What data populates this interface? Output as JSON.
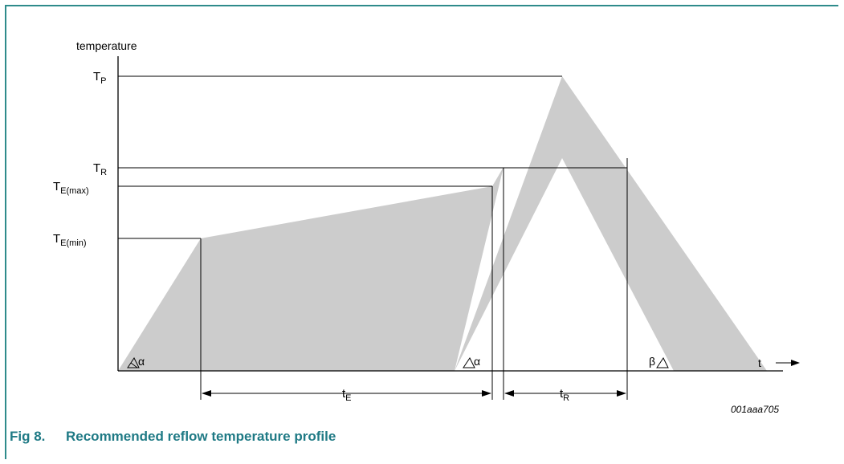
{
  "figure": {
    "number": "Fig 8.",
    "caption": "Recommended reflow temperature profile",
    "code": "001aaa705"
  },
  "axes": {
    "y_label": "temperature",
    "x_label": "t"
  },
  "levels": [
    {
      "base": "T",
      "sub": "P"
    },
    {
      "base": "T",
      "sub": "R"
    },
    {
      "base": "T",
      "sub": "E(max)"
    },
    {
      "base": "T",
      "sub": "E(min)"
    }
  ],
  "intervals": [
    {
      "base": "t",
      "sub": "E"
    },
    {
      "base": "t",
      "sub": "R"
    }
  ],
  "slope_marks": [
    "α",
    "α",
    "β"
  ],
  "colors": {
    "frame": "#2e8b8b",
    "caption": "#1f7a85",
    "band": "#cccccc",
    "line": "#000000"
  }
}
